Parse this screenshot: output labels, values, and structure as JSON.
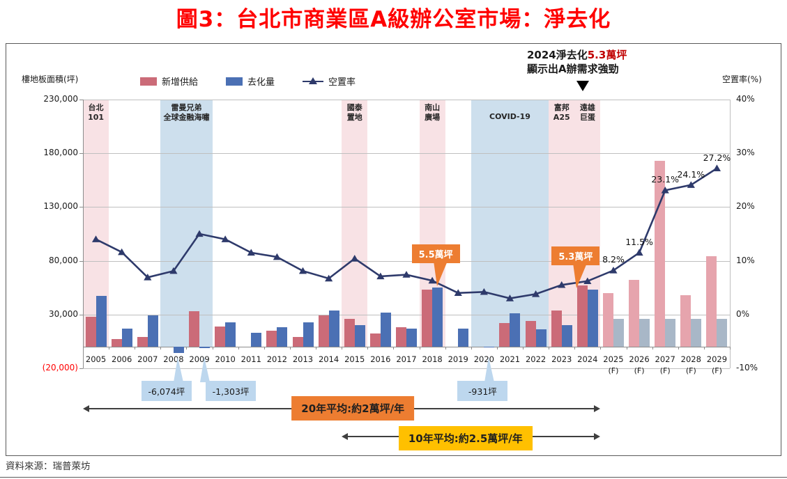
{
  "header": {
    "title": "圖3：台北市商業區A級辦公室市場：淨去化"
  },
  "source": {
    "text": "資料來源：瑞普萊坊"
  },
  "axes": {
    "left_label": "樓地板面積(坪)",
    "right_label": "空置率(%)",
    "left_ticks": [
      {
        "label": "230,000",
        "value": 230000
      },
      {
        "label": "180,000",
        "value": 180000
      },
      {
        "label": "130,000",
        "value": 130000
      },
      {
        "label": "80,000",
        "value": 80000
      },
      {
        "label": "30,000",
        "value": 30000
      },
      {
        "label": "(20,000)",
        "value": -20000,
        "negative": true
      }
    ],
    "right_ticks": [
      {
        "label": "40%",
        "value": 40
      },
      {
        "label": "30%",
        "value": 30
      },
      {
        "label": "20%",
        "value": 20
      },
      {
        "label": "10%",
        "value": 10
      },
      {
        "label": "0%",
        "value": 0
      },
      {
        "label": "-10%",
        "value": -10
      }
    ]
  },
  "legend": {
    "items": [
      {
        "label": "新增供給",
        "type": "bar",
        "color": "#cb6b78"
      },
      {
        "label": "去化量",
        "type": "bar",
        "color": "#4b70b4"
      },
      {
        "label": "空置率",
        "type": "line",
        "color": "#2e3a6b"
      }
    ]
  },
  "annotation": {
    "line1": "2024淨去化",
    "highlight": "5.3萬坪",
    "line2": "顯示出A辦需求強勁"
  },
  "events": [
    {
      "lines": [
        "台北",
        "101"
      ],
      "from": "2005",
      "to": "2005",
      "color": "#f8e2e5"
    },
    {
      "lines": [
        "雷曼兄弟",
        "全球金融海嘯"
      ],
      "from": "2008",
      "to": "2009",
      "color": "#cddfed"
    },
    {
      "lines": [
        "國泰",
        "置地"
      ],
      "from": "2015",
      "to": "2015",
      "color": "#f8e2e5"
    },
    {
      "lines": [
        "南山",
        "廣場"
      ],
      "from": "2018",
      "to": "2018",
      "color": "#f8e2e5"
    },
    {
      "lines": [
        "COVID-19"
      ],
      "from": "2020",
      "to": "2022",
      "color": "#cddfed"
    },
    {
      "lines": [
        "富邦",
        "A25"
      ],
      "from": "2023",
      "to": "2023",
      "color": "#f8e2e5"
    },
    {
      "lines": [
        "遠雄",
        "巨蛋"
      ],
      "from": "2024",
      "to": "2024",
      "color": "#f8e2e5"
    }
  ],
  "callouts_top": [
    {
      "text": "5.5萬坪",
      "year": "2018"
    },
    {
      "text": "5.3萬坪",
      "year": "2024"
    }
  ],
  "callouts_bottom": [
    {
      "text": "-6,074坪",
      "year": "2008"
    },
    {
      "text": "-1,303坪",
      "year": "2009"
    },
    {
      "text": "-931坪",
      "year": "2020"
    }
  ],
  "averages": [
    {
      "text": "20年平均:約2萬坪/年",
      "from": "2005",
      "to": "2024",
      "bg": "#ed7d31"
    },
    {
      "text": "10年平均:約2.5萬坪/年",
      "from": "2015",
      "to": "2024",
      "bg": "#ffc000"
    }
  ],
  "palette": {
    "supply": "#cb6b78",
    "supply_forecast": "#e6a4ad",
    "absorption": "#4b70b4",
    "absorption_forecast": "#a8b7c7",
    "vacancy_line": "#2e3a6b",
    "band_pink": "#f8e2e5",
    "band_blue": "#cddfed",
    "callout_orange": "#ed7d31",
    "callout_blue": "#bdd7ee",
    "avg_orange": "#ed7d31",
    "avg_amber": "#ffc000",
    "title_red": "#ff0000"
  },
  "chart_data": {
    "type": "combo-bar-line",
    "categories": [
      "2005",
      "2006",
      "2007",
      "2008",
      "2009",
      "2010",
      "2011",
      "2012",
      "2013",
      "2014",
      "2015",
      "2016",
      "2017",
      "2018",
      "2019",
      "2020",
      "2021",
      "2022",
      "2023",
      "2024",
      "2025",
      "2026",
      "2027",
      "2028",
      "2029"
    ],
    "forecast_start_index": 20,
    "forecast_suffix": "(F)",
    "series": [
      {
        "name": "新增供給",
        "type": "bar",
        "axis": "left",
        "values": [
          28000,
          7000,
          9000,
          0,
          33000,
          19000,
          0,
          15000,
          9000,
          29000,
          26000,
          12000,
          18000,
          53000,
          0,
          0,
          22000,
          24000,
          34000,
          57000,
          50000,
          62000,
          173000,
          48000,
          84000
        ]
      },
      {
        "name": "去化量",
        "type": "bar",
        "axis": "left",
        "values": [
          47000,
          17000,
          29000,
          -6074,
          -1303,
          23000,
          13000,
          18000,
          23000,
          34000,
          20000,
          32000,
          17000,
          55000,
          17000,
          -931,
          31000,
          16000,
          20000,
          53000,
          26000,
          26000,
          26000,
          26000,
          26000
        ]
      },
      {
        "name": "空置率",
        "type": "line",
        "axis": "right",
        "values": [
          14.0,
          11.6,
          6.9,
          8.1,
          15.0,
          14.0,
          11.5,
          10.7,
          8.1,
          6.7,
          10.4,
          7.1,
          7.4,
          6.3,
          4.0,
          4.2,
          3.0,
          3.8,
          5.5,
          6.2,
          8.2,
          11.5,
          23.1,
          24.1,
          27.2
        ],
        "point_labels": {
          "2025": "8.2%",
          "2026": "11.5%",
          "2027": "23.1%",
          "2028": "24.1%",
          "2029": "27.2%"
        }
      }
    ],
    "ylim_left": [
      -20000,
      230000
    ],
    "ylim_right": [
      -10,
      40
    ],
    "grid": true,
    "legend_position": "top"
  }
}
